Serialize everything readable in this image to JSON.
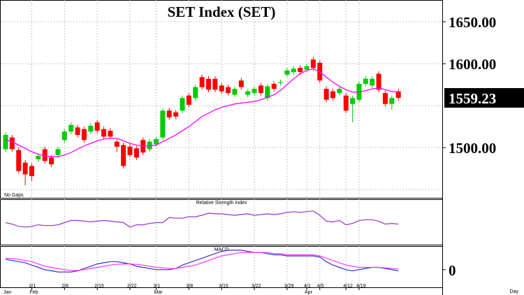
{
  "chart_data": [
    {
      "type": "candlestick",
      "title": "SET Index (SET)",
      "note": "No Gaps",
      "x_label": "Day",
      "up_color": "#00cc00",
      "down_color": "#ff0000",
      "ma_color": "#ff00ff",
      "categories": [
        null,
        null,
        null,
        null,
        "2/1",
        null,
        null,
        null,
        null,
        "2/8",
        null,
        null,
        null,
        null,
        "2/15",
        null,
        null,
        null,
        null,
        "2/22",
        null,
        null,
        null,
        "3/1",
        null,
        null,
        null,
        null,
        "3/8",
        null,
        null,
        null,
        null,
        "3/15",
        null,
        null,
        null,
        null,
        "3/22",
        null,
        null,
        null,
        null,
        "3/29",
        null,
        null,
        "4/1",
        null,
        "4/5",
        null,
        null,
        null,
        "4/12",
        null,
        "4/19",
        null,
        null,
        null,
        null,
        null,
        null
      ],
      "months": [
        "Jan",
        null,
        null,
        null,
        "Feb",
        null,
        null,
        null,
        null,
        null,
        null,
        null,
        null,
        null,
        null,
        null,
        null,
        null,
        null,
        null,
        null,
        null,
        null,
        "Mar",
        null,
        null,
        null,
        null,
        null,
        null,
        null,
        null,
        null,
        null,
        null,
        null,
        null,
        null,
        null,
        null,
        null,
        null,
        null,
        null,
        null,
        null,
        "Apr",
        null,
        null,
        null,
        null,
        null,
        null,
        null,
        null,
        null,
        null,
        null,
        null,
        null,
        null
      ],
      "open": [
        1498,
        1512,
        1497,
        1482,
        1478,
        1486,
        1498,
        1488,
        1491,
        1509,
        1519,
        1524,
        1522,
        1519,
        1530,
        1522,
        1520,
        1507,
        1503,
        1501,
        1499,
        1509,
        1498,
        1504,
        1512,
        1544,
        1542,
        1544,
        1562,
        1559,
        1584,
        1582,
        1582,
        1574,
        1572,
        1563,
        1580,
        1563,
        1565,
        1574,
        1559,
        1576,
        1577,
        1587,
        1590,
        1595,
        1593,
        1605,
        1601,
        1570,
        1567,
        1565,
        1562,
        1552,
        1557,
        1576,
        1574,
        1588,
        1565,
        1552,
        1567
      ],
      "high": [
        1518,
        1515,
        1500,
        1485,
        1481,
        1493,
        1501,
        1491,
        1501,
        1522,
        1530,
        1527,
        1525,
        1529,
        1533,
        1525,
        1523,
        1510,
        1506,
        1504,
        1502,
        1512,
        1510,
        1513,
        1547,
        1547,
        1545,
        1562,
        1565,
        1575,
        1587,
        1585,
        1585,
        1577,
        1575,
        1573,
        1583,
        1570,
        1573,
        1577,
        1576,
        1579,
        1581,
        1595,
        1597,
        1598,
        1600,
        1608,
        1604,
        1573,
        1570,
        1573,
        1565,
        1562,
        1579,
        1585,
        1585,
        1591,
        1568,
        1562,
        1570
      ],
      "low": [
        1495,
        1495,
        1469,
        1455,
        1460,
        1483,
        1481,
        1477,
        1488,
        1506,
        1516,
        1512,
        1506,
        1516,
        1517,
        1510,
        1510,
        1495,
        1475,
        1488,
        1485,
        1491,
        1495,
        1501,
        1509,
        1533,
        1534,
        1541,
        1548,
        1556,
        1569,
        1566,
        1566,
        1564,
        1562,
        1560,
        1569,
        1560,
        1562,
        1562,
        1556,
        1567,
        1574,
        1584,
        1587,
        1587,
        1590,
        1592,
        1577,
        1554,
        1556,
        1562,
        1541,
        1530,
        1554,
        1573,
        1571,
        1566,
        1549,
        1545,
        1556
      ],
      "close": [
        1515,
        1498,
        1472,
        1468,
        1466,
        1490,
        1484,
        1480,
        1498,
        1519,
        1527,
        1515,
        1509,
        1526,
        1520,
        1513,
        1513,
        1501,
        1478,
        1491,
        1488,
        1494,
        1507,
        1510,
        1544,
        1536,
        1537,
        1559,
        1551,
        1572,
        1572,
        1569,
        1569,
        1567,
        1565,
        1570,
        1572,
        1567,
        1570,
        1565,
        1573,
        1570,
        1578,
        1592,
        1594,
        1590,
        1597,
        1595,
        1580,
        1557,
        1559,
        1570,
        1544,
        1559,
        1576,
        1582,
        1582,
        1569,
        1552,
        1559,
        1559.23
      ],
      "ma": [
        1509,
        1507,
        1503,
        1499,
        1495,
        1492,
        1490,
        1489,
        1489,
        1491,
        1494,
        1498,
        1502,
        1505,
        1508,
        1510,
        1511,
        1511,
        1508,
        1505,
        1503,
        1502,
        1502,
        1503,
        1507,
        1511,
        1515,
        1520,
        1525,
        1531,
        1537,
        1541,
        1545,
        1548,
        1550,
        1552,
        1553,
        1554,
        1555,
        1557,
        1560,
        1563,
        1568,
        1575,
        1582,
        1588,
        1592,
        1594,
        1590,
        1584,
        1578,
        1573,
        1569,
        1566,
        1566,
        1568,
        1570,
        1571,
        1569,
        1567,
        1566
      ],
      "ylim": [
        1440,
        1676
      ],
      "yticks": [
        {
          "value": 1500,
          "label": "1500.00"
        },
        {
          "value": 1600,
          "label": "1600.00"
        },
        {
          "value": 1650,
          "label": "1650.00"
        }
      ],
      "ygrid": [
        1450,
        1500,
        1550,
        1600,
        1650
      ],
      "grid": true
    },
    {
      "type": "line",
      "title": "Relative Strength Index",
      "color": "#9933cc",
      "values": [
        50,
        48,
        45,
        44,
        45,
        47,
        46,
        46,
        47,
        50,
        53,
        53,
        52,
        51,
        52,
        53,
        52,
        51,
        50,
        44,
        47,
        47,
        49,
        50,
        50,
        57,
        56,
        56,
        58,
        58,
        60,
        63,
        62,
        62,
        61,
        60,
        61,
        62,
        60,
        61,
        62,
        61,
        62,
        64,
        65,
        64,
        65,
        66,
        60,
        52,
        51,
        53,
        47,
        49,
        53,
        54,
        54,
        52,
        48,
        49,
        48
      ],
      "ylim": [
        20,
        80
      ]
    },
    {
      "type": "line",
      "title": "MACD",
      "series": [
        {
          "color": "#3333cc",
          "values": [
            4.5,
            4,
            3.5,
            3,
            2,
            1,
            0,
            -0.5,
            -1,
            -1,
            -1,
            -0.5,
            0.5,
            1.5,
            2.5,
            3,
            3.5,
            3.5,
            3,
            2.5,
            1.5,
            1,
            0.5,
            0,
            0,
            0,
            0.5,
            2,
            3,
            4,
            5,
            6,
            7,
            8,
            8.5,
            8.5,
            8.5,
            8,
            7.5,
            7.5,
            7,
            6.5,
            6.5,
            6,
            6,
            6,
            6,
            6,
            5.5,
            3.5,
            2,
            1,
            0,
            -0.5,
            0,
            0.5,
            1,
            1,
            0.5,
            0,
            -0.5
          ]
        },
        {
          "color": "#ff33ff",
          "values": [
            5,
            4.8,
            4.5,
            4,
            3.5,
            2.5,
            1.5,
            1,
            0.5,
            0,
            -0.3,
            -0.3,
            0,
            0.5,
            1,
            1.5,
            2,
            2.3,
            2.5,
            2.5,
            2.3,
            2,
            1.5,
            1,
            0.8,
            0.5,
            0.5,
            1,
            1.5,
            2,
            3,
            4,
            5,
            6,
            6.5,
            7,
            7.5,
            7.5,
            7.5,
            7.5,
            7.5,
            7,
            7,
            6.5,
            6.5,
            6.5,
            6.5,
            6.5,
            6,
            5,
            4,
            3,
            2,
            1.5,
            1,
            1,
            1,
            1,
            0.8,
            0.5,
            0.3
          ]
        }
      ],
      "ylim": [
        -8,
        10
      ],
      "yticks": [
        0
      ]
    }
  ]
}
